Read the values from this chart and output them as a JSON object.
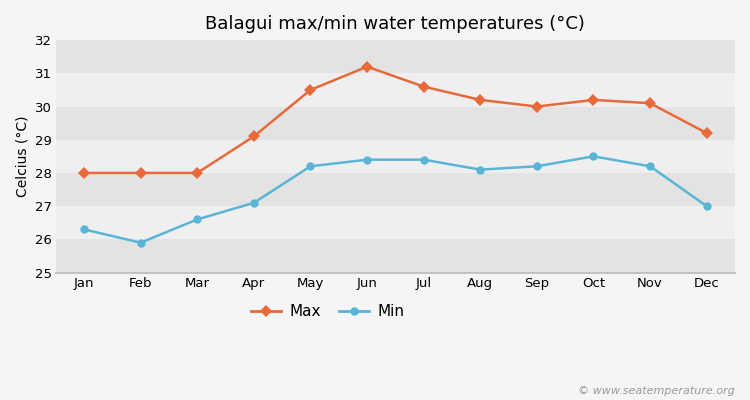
{
  "title": "Balagui max/min water temperatures (°C)",
  "ylabel": "Celcius (°C)",
  "months": [
    "Jan",
    "Feb",
    "Mar",
    "Apr",
    "May",
    "Jun",
    "Jul",
    "Aug",
    "Sep",
    "Oct",
    "Nov",
    "Dec"
  ],
  "max_temps": [
    28.0,
    28.0,
    28.0,
    29.1,
    30.5,
    31.2,
    30.6,
    30.2,
    30.0,
    30.2,
    30.1,
    29.2
  ],
  "min_temps": [
    26.3,
    25.9,
    26.6,
    27.1,
    28.2,
    28.4,
    28.4,
    28.1,
    28.2,
    28.5,
    28.2,
    27.0
  ],
  "max_color": "#e8693a",
  "min_color": "#5ab4d6",
  "fig_bg_color": "#f5f5f5",
  "band_light": "#efefef",
  "band_dark": "#e3e3e3",
  "ylim": [
    25,
    32
  ],
  "yticks": [
    25,
    26,
    27,
    28,
    29,
    30,
    31,
    32
  ],
  "legend_labels": [
    "Max",
    "Min"
  ],
  "watermark": "© www.seatemperature.org",
  "title_fontsize": 13,
  "label_fontsize": 10,
  "tick_fontsize": 9.5,
  "watermark_fontsize": 8
}
